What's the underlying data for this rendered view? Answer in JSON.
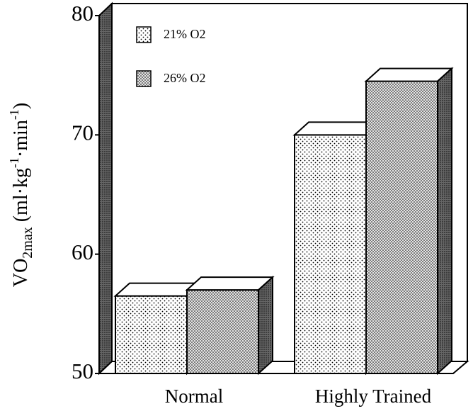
{
  "chart_data": {
    "type": "bar3d",
    "ylabel_parts": [
      "VO",
      "2max",
      " (ml·kg",
      "-1",
      "·min",
      "-1",
      ")"
    ],
    "categories": [
      "Normal",
      "Highly Trained"
    ],
    "series": [
      {
        "name": "21% O2",
        "values": [
          56.5,
          70
        ]
      },
      {
        "name": "26% O2",
        "values": [
          57,
          74.5
        ]
      }
    ],
    "ylim": [
      50,
      80
    ],
    "yticks": [
      50,
      60,
      70,
      80
    ],
    "legend": "top-left"
  }
}
